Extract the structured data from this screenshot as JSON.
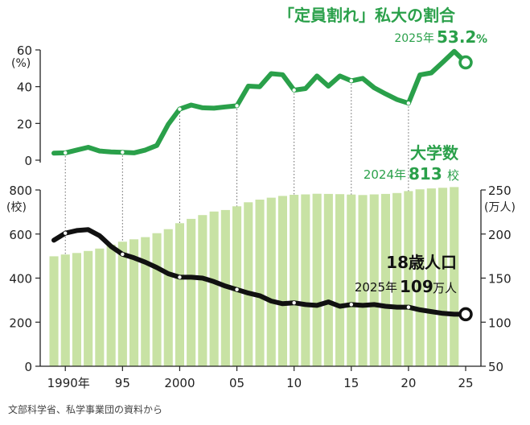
{
  "chart_data": [
    {
      "type": "line",
      "title": "「定員割れ」私大の割合",
      "annotation": {
        "prefix": "2025年",
        "value": "53.2",
        "unit": "%"
      },
      "unit_label": "(%)",
      "ylim": [
        0,
        60
      ],
      "yticks": [
        "60",
        "40",
        "20",
        "0"
      ],
      "grid": false,
      "color": "#2aa04a",
      "series": [
        {
          "x": [
            1989,
            1990,
            1991,
            1992,
            1993,
            1994,
            1995,
            1996,
            1997,
            1998,
            1999,
            2000,
            2001,
            2002,
            2003,
            2004,
            2005,
            2006,
            2007,
            2008,
            2009,
            2010,
            2011,
            2012,
            2013,
            2014,
            2015,
            2016,
            2017,
            2018,
            2019,
            2020,
            2021,
            2022,
            2023,
            2024,
            2025
          ],
          "values": [
            3.8,
            4.0,
            5.5,
            7.0,
            5.0,
            4.5,
            4.3,
            4.0,
            5.5,
            8.0,
            19.5,
            27.8,
            30.0,
            28.5,
            28.3,
            29.0,
            29.6,
            40.3,
            40.0,
            47.1,
            46.5,
            38.1,
            39.0,
            45.8,
            40.3,
            45.8,
            43.2,
            44.5,
            39.4,
            36.1,
            33.0,
            31.0,
            46.4,
            47.5,
            53.3,
            59.2,
            53.2
          ]
        }
      ]
    },
    {
      "type": "bar",
      "title": "大学数",
      "annotation": {
        "prefix": "2024年",
        "value": "813",
        "unit": "校"
      },
      "unit_label": [
        "(校)"
      ],
      "ylim": [
        0,
        800
      ],
      "yticks": [
        "800",
        "600",
        "400",
        "200",
        "0"
      ],
      "color": "#c8e2a4",
      "categories": [
        1989,
        1990,
        1991,
        1992,
        1993,
        1994,
        1995,
        1996,
        1997,
        1998,
        1999,
        2000,
        2001,
        2002,
        2003,
        2004,
        2005,
        2006,
        2007,
        2008,
        2009,
        2010,
        2011,
        2012,
        2013,
        2014,
        2015,
        2016,
        2017,
        2018,
        2019,
        2020,
        2021,
        2022,
        2023,
        2024
      ],
      "values": [
        499,
        507,
        514,
        523,
        534,
        552,
        565,
        576,
        586,
        604,
        622,
        649,
        669,
        686,
        702,
        709,
        726,
        744,
        756,
        765,
        773,
        778,
        780,
        783,
        782,
        781,
        779,
        777,
        780,
        782,
        786,
        795,
        803,
        807,
        810,
        813
      ]
    },
    {
      "type": "line",
      "title": "18歳人口",
      "annotation": {
        "prefix": "2025年",
        "value": "109",
        "unit": "万人"
      },
      "unit_label": [
        "(万人)"
      ],
      "ylim": [
        50,
        250
      ],
      "yticks": [
        "250",
        "200",
        "150",
        "100",
        "50"
      ],
      "color": "#111111",
      "series": [
        {
          "x": [
            1989,
            1990,
            1991,
            1992,
            1993,
            1994,
            1995,
            1996,
            1997,
            1998,
            1999,
            2000,
            2001,
            2002,
            2003,
            2004,
            2005,
            2006,
            2007,
            2008,
            2009,
            2010,
            2011,
            2012,
            2013,
            2014,
            2015,
            2016,
            2017,
            2018,
            2019,
            2020,
            2021,
            2022,
            2023,
            2024,
            2025
          ],
          "values": [
            193,
            201,
            204,
            205,
            198,
            186,
            177,
            173,
            168,
            162,
            155,
            151,
            151,
            150,
            146,
            141,
            137,
            133,
            130,
            124,
            121,
            122,
            120,
            119,
            123,
            118,
            120,
            119,
            120,
            118,
            117,
            117,
            114,
            112,
            110,
            109,
            109
          ]
        }
      ]
    }
  ],
  "x_axis": {
    "ticks": [
      "1990年",
      "95",
      "2000",
      "05",
      "10",
      "15",
      "20",
      "25"
    ]
  },
  "source": "文部科学省、私学事業団の資料から"
}
